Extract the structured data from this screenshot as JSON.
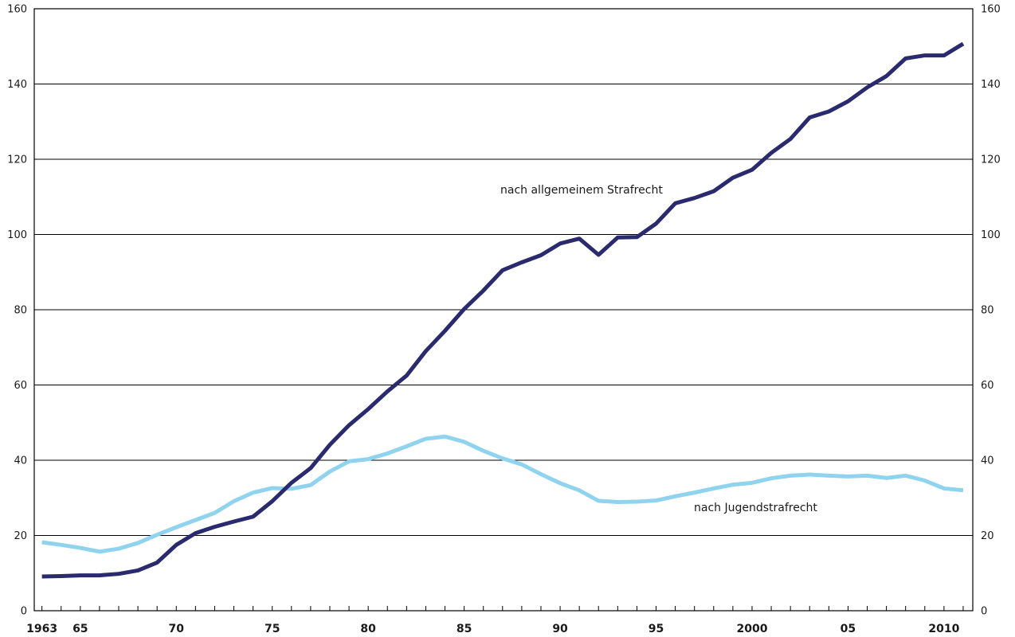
{
  "chart_data": {
    "type": "line",
    "title": "",
    "xlabel": "",
    "ylabel": "",
    "xlim": [
      1962.6,
      2011.5
    ],
    "ylim": [
      0,
      160
    ],
    "yticks": [
      0,
      20,
      40,
      60,
      80,
      100,
      120,
      140,
      160
    ],
    "y_axis_both_sides": true,
    "grid": "horizontal",
    "xtick_labels": [
      {
        "x": 1963,
        "label": "1963"
      },
      {
        "x": 1965,
        "label": "65"
      },
      {
        "x": 1970,
        "label": "70"
      },
      {
        "x": 1975,
        "label": "75"
      },
      {
        "x": 1980,
        "label": "80"
      },
      {
        "x": 1985,
        "label": "85"
      },
      {
        "x": 1990,
        "label": "90"
      },
      {
        "x": 1995,
        "label": "95"
      },
      {
        "x": 2000,
        "label": "2000"
      },
      {
        "x": 2005,
        "label": "05"
      },
      {
        "x": 2010,
        "label": "2010"
      }
    ],
    "x": [
      1963,
      1964,
      1965,
      1966,
      1967,
      1968,
      1969,
      1970,
      1971,
      1972,
      1973,
      1974,
      1975,
      1976,
      1977,
      1978,
      1979,
      1980,
      1981,
      1982,
      1983,
      1984,
      1985,
      1986,
      1987,
      1988,
      1989,
      1990,
      1991,
      1992,
      1993,
      1994,
      1995,
      1996,
      1997,
      1998,
      1999,
      2000,
      2001,
      2002,
      2003,
      2004,
      2005,
      2006,
      2007,
      2008,
      2009,
      2010,
      2011
    ],
    "series": [
      {
        "name": "nach allgemeinem Strafrecht",
        "color": "#2a2a6e",
        "label": "nach allgemeinem Strafrecht",
        "values": [
          9.1,
          9.2,
          9.4,
          9.4,
          9.8,
          10.7,
          12.8,
          17.5,
          20.6,
          22.3,
          23.7,
          25.0,
          29.1,
          34.0,
          37.9,
          44.1,
          49.3,
          53.6,
          58.3,
          62.5,
          69.0,
          74.4,
          80.2,
          85.1,
          90.5,
          92.6,
          94.5,
          97.6,
          98.9,
          94.6,
          99.2,
          99.3,
          102.9,
          108.3,
          109.7,
          111.5,
          115.1,
          117.2,
          121.7,
          125.4,
          131.1,
          132.7,
          135.4,
          139.1,
          142.1,
          146.8,
          147.6,
          147.6,
          150.7
        ]
      },
      {
        "name": "nach Jugendstrafrecht",
        "color": "#8fd3ef",
        "label": "nach Jugendstrafrecht",
        "values": [
          18.2,
          17.5,
          16.7,
          15.7,
          16.5,
          18.0,
          20.2,
          22.2,
          24.1,
          26.0,
          29.1,
          31.4,
          32.6,
          32.4,
          33.4,
          37.0,
          39.7,
          40.3,
          41.8,
          43.7,
          45.7,
          46.3,
          44.9,
          42.5,
          40.5,
          38.9,
          36.3,
          33.9,
          32.0,
          29.2,
          28.9,
          29.0,
          29.3,
          30.4,
          31.4,
          32.5,
          33.5,
          34.0,
          35.2,
          35.9,
          36.2,
          35.9,
          35.7,
          35.9,
          35.3,
          35.9,
          34.6,
          32.5,
          32.0
        ]
      }
    ]
  }
}
